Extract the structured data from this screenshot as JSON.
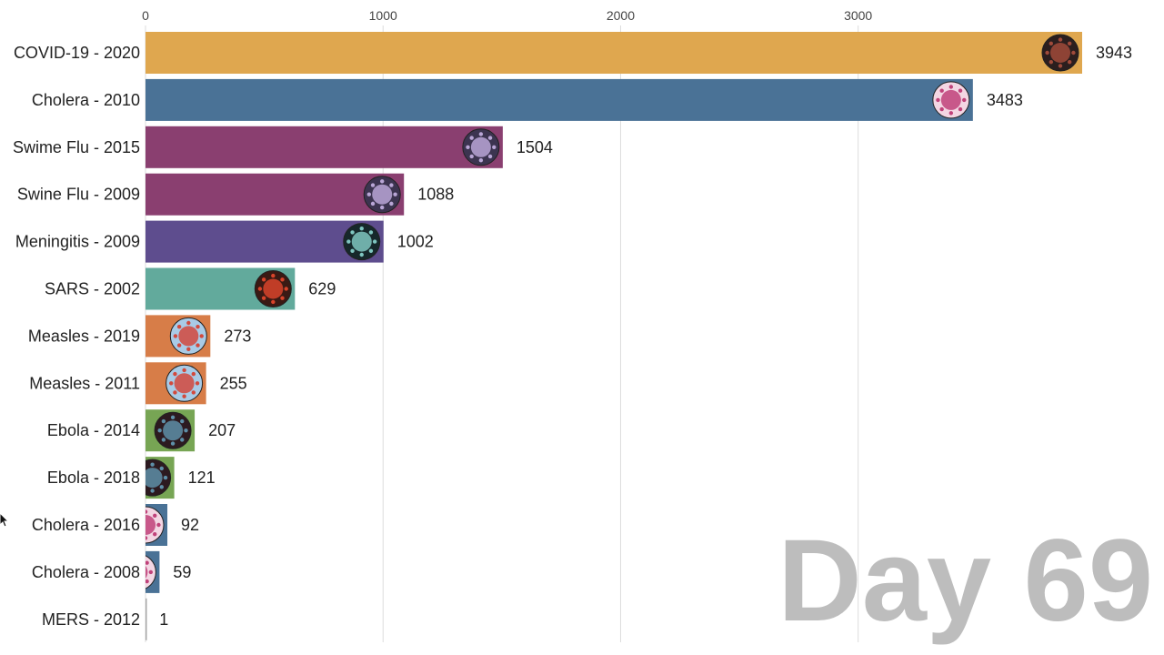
{
  "chart_data": {
    "type": "bar",
    "orientation": "horizontal",
    "categories": [
      "COVID-19 - 2020",
      "Cholera - 2010",
      "Swime Flu - 2015",
      "Swine Flu - 2009",
      "Meningitis - 2009",
      "SARS - 2002",
      "Measles - 2019",
      "Measles - 2011",
      "Ebola - 2014",
      "Ebola - 2018",
      "Cholera - 2016",
      "Cholera - 2008",
      "MERS - 2012"
    ],
    "values": [
      3943,
      3483,
      1504,
      1088,
      1002,
      629,
      273,
      255,
      207,
      121,
      92,
      59,
      1
    ],
    "bar_colors": [
      "#dfa74f",
      "#4a7296",
      "#8a3f70",
      "#8a3f70",
      "#5e4d8e",
      "#62aa9c",
      "#d77d48",
      "#d77d48",
      "#77a554",
      "#77a554",
      "#4a7296",
      "#4a7296",
      "#a8a8a8"
    ],
    "bar_icons": [
      "covid-virus-icon",
      "cholera-bacteria-icon",
      "flu-virus-icon",
      "flu-virus-icon",
      "meningitis-virus-icon",
      "sars-virus-icon",
      "measles-virus-icon",
      "measles-virus-icon",
      "ebola-virus-icon",
      "ebola-virus-icon",
      "cholera-bacteria-icon",
      "cholera-bacteria-icon",
      ""
    ],
    "xticks": [
      0,
      1000,
      2000,
      3000
    ],
    "xlim": [
      0,
      3943
    ],
    "grid": true,
    "day_label": "Day 69"
  }
}
